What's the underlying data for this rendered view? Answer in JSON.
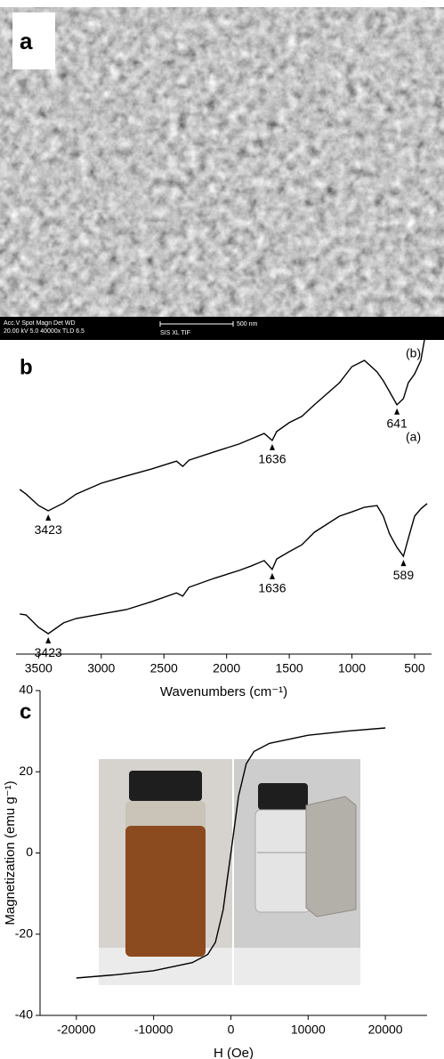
{
  "image_panel": {
    "panel_label": "a",
    "info": [
      "Acc.V  Spot Magn   Det  WD",
      "20.00 kV 5.0  40000x  TLD 6.5"
    ],
    "scale_bar": "500 nm",
    "footer": "SIS XL TIF"
  },
  "chart_data": [
    {
      "type": "line",
      "panel_label": "b",
      "xlabel": "Wavenumbers (cm⁻¹)",
      "x": [
        3650,
        3600,
        3500,
        3423,
        3300,
        3200,
        3000,
        2800,
        2600,
        2400,
        2350,
        2300,
        2100,
        1900,
        1800,
        1700,
        1636,
        1600,
        1500,
        1400,
        1300,
        1100,
        1000,
        900,
        800,
        750,
        700,
        641,
        589,
        550,
        500,
        450,
        420,
        400
      ],
      "xlim": [
        3680,
        365
      ],
      "xticks": [
        3500,
        3000,
        2500,
        2000,
        1500,
        1000,
        500
      ],
      "ylim": [
        0,
        100
      ],
      "series": [
        {
          "name": "(b)",
          "color": "#000000",
          "peaks": [
            3423,
            1636,
            641
          ],
          "values": [
            50.0,
            48.6,
            45.1,
            43.5,
            45.9,
            48.6,
            51.9,
            54.1,
            56.2,
            58.6,
            57.0,
            58.9,
            61.4,
            63.8,
            65.4,
            67.0,
            64.9,
            67.6,
            70.3,
            72.2,
            75.7,
            82.4,
            87.3,
            89.2,
            85.7,
            83.0,
            79.7,
            75.7,
            77.6,
            82.4,
            85.1,
            89.2,
            95.9,
            98.6
          ]
        },
        {
          "name": "(a)",
          "color": "#000000",
          "peaks": [
            3423,
            1636,
            589
          ],
          "values": [
            12.2,
            11.9,
            8.1,
            6.2,
            9.5,
            10.8,
            12.2,
            13.5,
            15.9,
            18.6,
            17.6,
            20.3,
            23.0,
            25.4,
            26.8,
            28.4,
            25.7,
            28.9,
            31.1,
            33.2,
            37.0,
            41.9,
            43.2,
            44.6,
            45.1,
            41.9,
            36.5,
            32.4,
            29.7,
            35.1,
            41.9,
            44.1,
            45.1,
            45.7
          ]
        }
      ]
    },
    {
      "type": "line",
      "panel_label": "c",
      "xlabel": "H (Oe)",
      "ylabel": "Magnetization (emu g⁻¹)",
      "x": [
        -20000,
        -15000,
        -10000,
        -5000,
        -3000,
        -2000,
        -1000,
        -500,
        0,
        500,
        1000,
        2000,
        3000,
        5000,
        10000,
        15000,
        20000
      ],
      "xlim": [
        -24700,
        25400
      ],
      "xticks": [
        -20000,
        -10000,
        0,
        10000,
        20000
      ],
      "ylim": [
        -40,
        40
      ],
      "yticks": [
        -40,
        -20,
        0,
        20,
        40
      ],
      "series": [
        {
          "color": "#000000",
          "values": [
            -30.8,
            -30.0,
            -29.0,
            -27.0,
            -25.0,
            -22.0,
            -14.0,
            -7.0,
            0,
            7.0,
            14.0,
            22.0,
            25.0,
            27.0,
            29.0,
            30.0,
            30.8
          ]
        }
      ]
    }
  ]
}
